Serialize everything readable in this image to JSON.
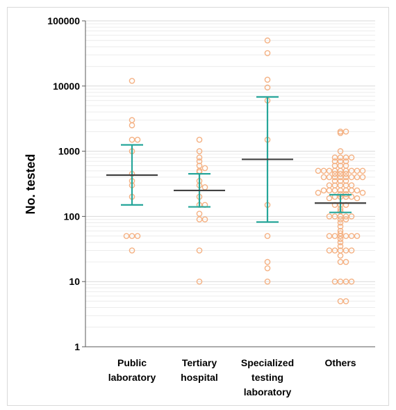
{
  "chart_data": {
    "type": "scatter",
    "ylabel": "No. tested",
    "yscale": "log",
    "ylim": [
      1,
      100000
    ],
    "y_ticks": [
      "1",
      "10",
      "100",
      "1000",
      "10000",
      "100000"
    ],
    "grid": "horizontal-minor",
    "categories": [
      {
        "lines": [
          "Public",
          "laboratory"
        ]
      },
      {
        "lines": [
          "Tertiary",
          "hospital"
        ]
      },
      {
        "lines": [
          "Specialized",
          "testing",
          "laboratory"
        ]
      },
      {
        "lines": [
          "Others"
        ]
      }
    ],
    "colors": {
      "points": "#f4b183",
      "error_bars": "#26a69a",
      "median": "#404040"
    },
    "groups": [
      {
        "median": 430,
        "upper": 1250,
        "lower": 150,
        "points": [
          12000,
          3000,
          2500,
          1500,
          1500,
          1000,
          450,
          350,
          300,
          200,
          50,
          50,
          50,
          30
        ]
      },
      {
        "median": 250,
        "upper": 450,
        "lower": 140,
        "points": [
          1500,
          1000,
          800,
          700,
          600,
          550,
          500,
          480,
          350,
          300,
          280,
          200,
          150,
          150,
          110,
          90,
          90,
          30,
          10
        ]
      },
      {
        "median": 750,
        "upper": 6800,
        "lower": 82,
        "points": [
          50000,
          32000,
          12500,
          9500,
          6000,
          1500,
          150,
          50,
          20,
          16,
          10
        ]
      },
      {
        "median": 160,
        "upper": 215,
        "lower": 115,
        "points": [
          2000,
          2000,
          1900,
          1000,
          800,
          800,
          800,
          800,
          700,
          700,
          700,
          600,
          600,
          600,
          500,
          500,
          500,
          500,
          500,
          500,
          500,
          500,
          500,
          450,
          450,
          450,
          400,
          400,
          400,
          400,
          400,
          400,
          400,
          400,
          350,
          350,
          350,
          300,
          300,
          300,
          300,
          300,
          250,
          250,
          250,
          250,
          250,
          250,
          250,
          230,
          230,
          220,
          220,
          200,
          200,
          200,
          200,
          190,
          190,
          150,
          150,
          150,
          130,
          120,
          100,
          100,
          100,
          100,
          100,
          90,
          90,
          80,
          70,
          60,
          55,
          50,
          50,
          50,
          50,
          50,
          50,
          45,
          40,
          35,
          30,
          30,
          30,
          30,
          30,
          25,
          20,
          20,
          10,
          10,
          10,
          10,
          5,
          5
        ]
      }
    ]
  }
}
